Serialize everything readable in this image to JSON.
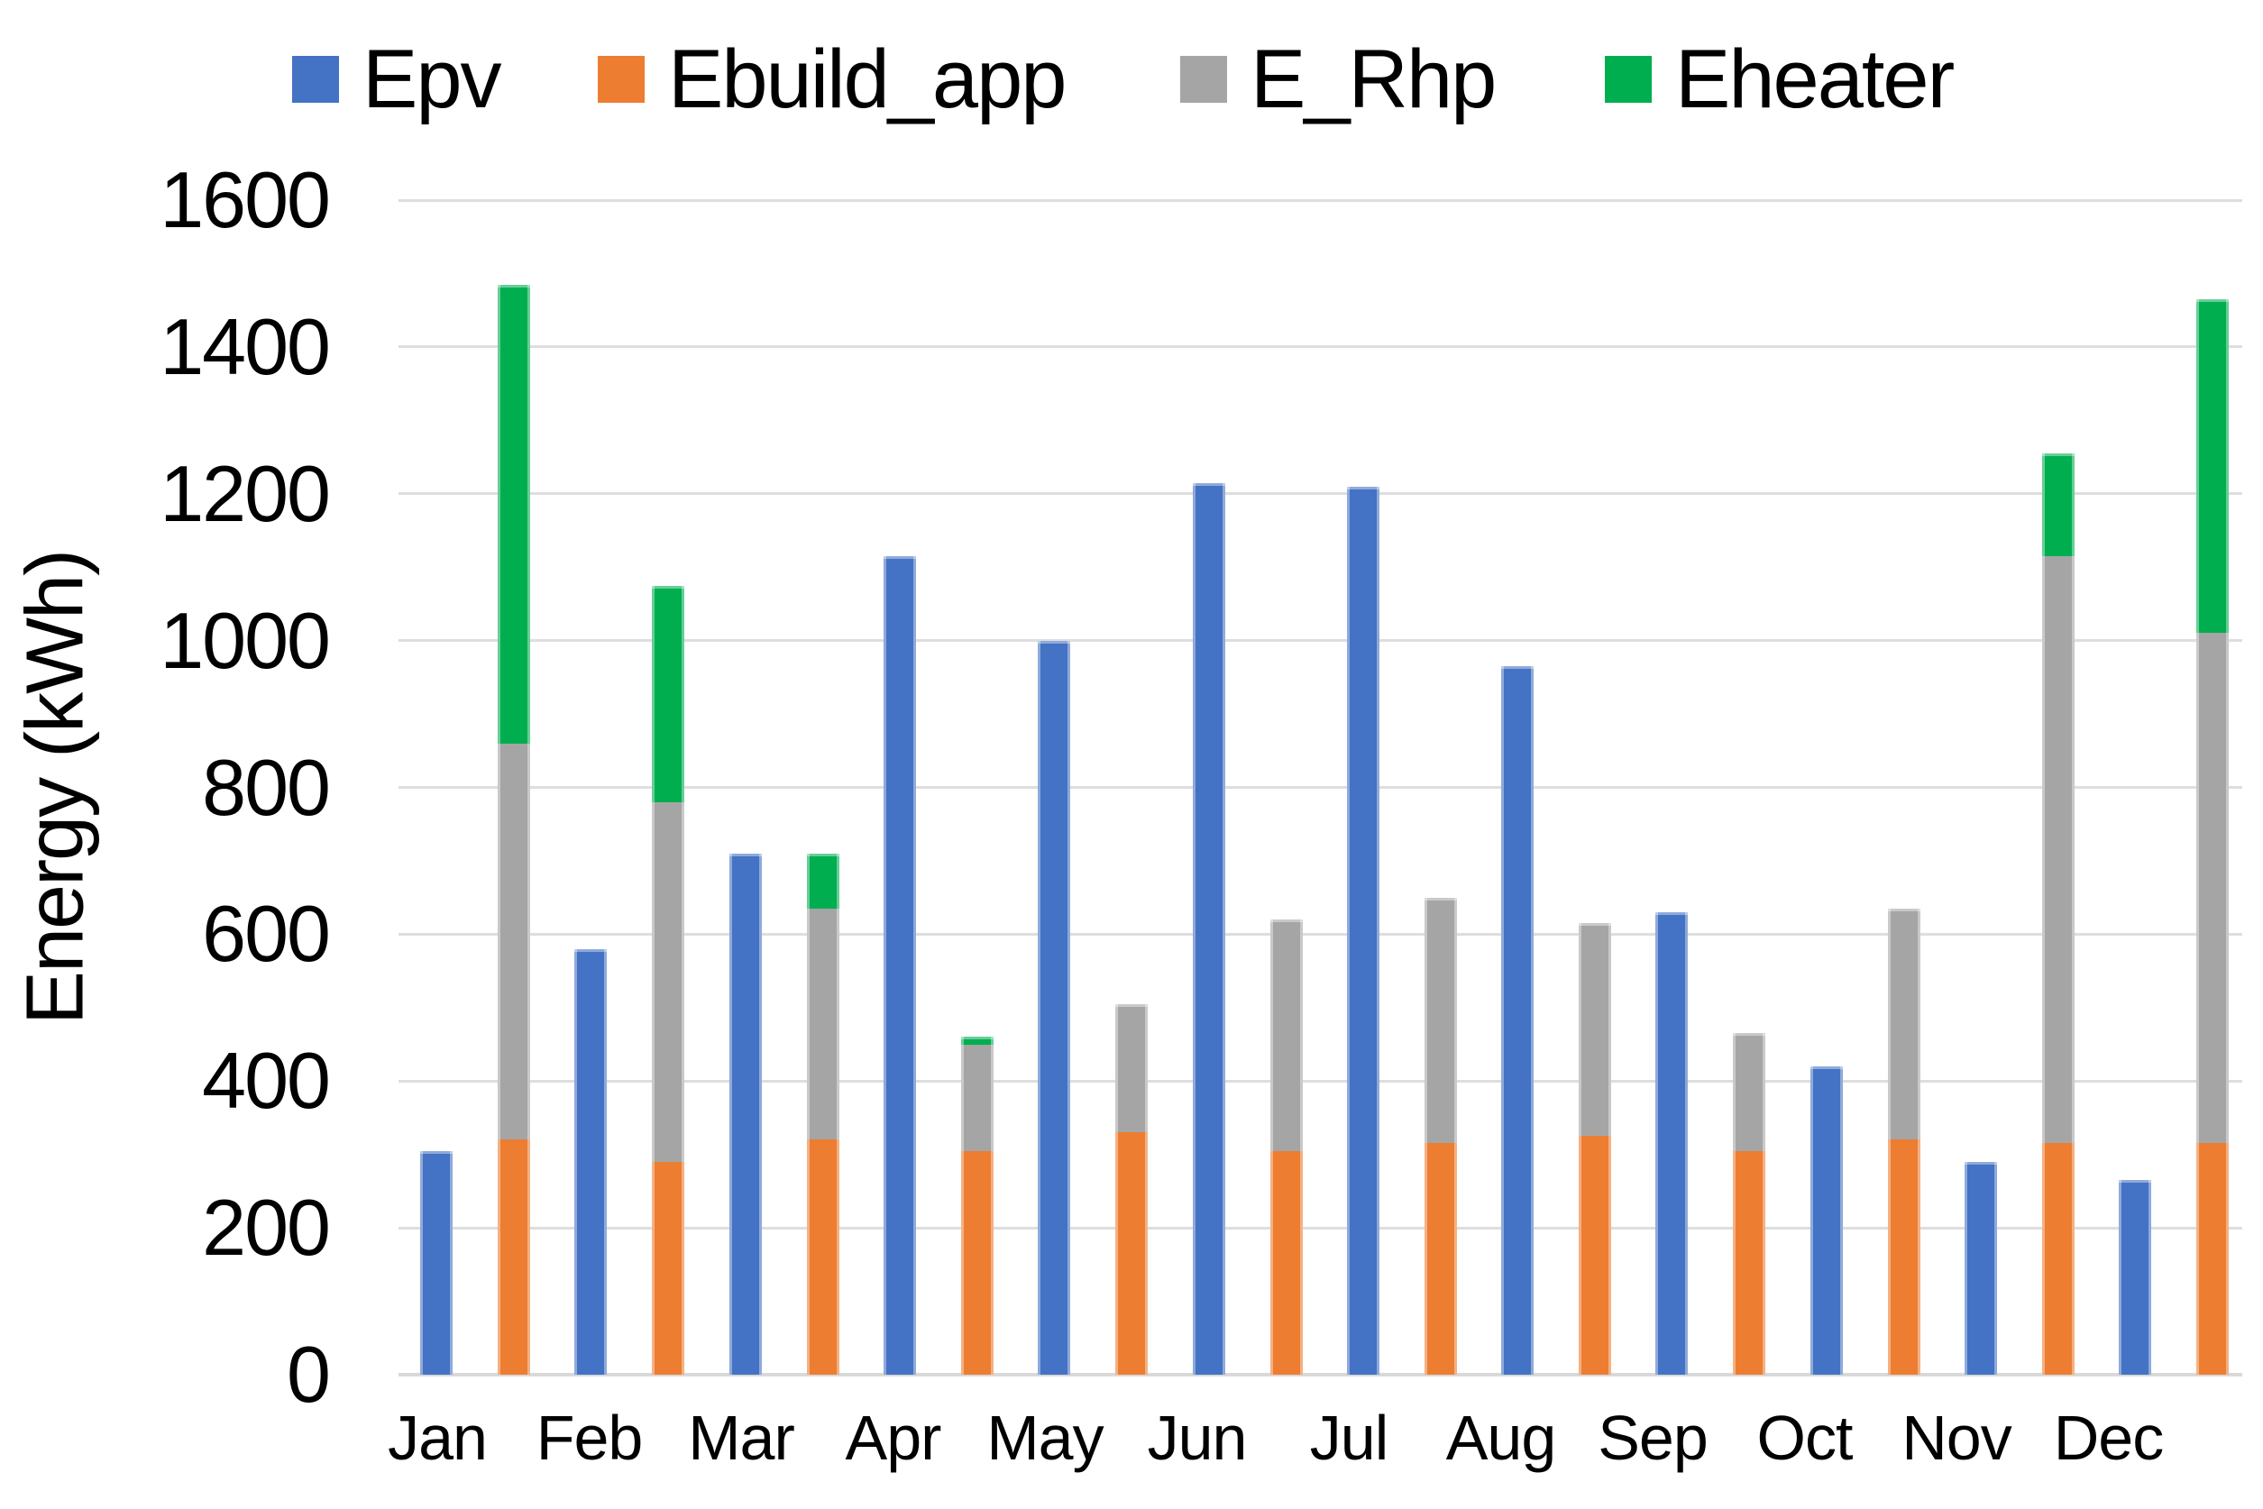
{
  "chart_data": {
    "type": "bar",
    "title": "",
    "xlabel": "",
    "ylabel": "Energy (kWh)",
    "ylim": [
      0,
      1600
    ],
    "y_ticks": [
      0,
      200,
      400,
      600,
      800,
      1000,
      1200,
      1400,
      1600
    ],
    "grid": true,
    "legend_position": "top",
    "categories": [
      "Jan",
      "Feb",
      "Mar",
      "Apr",
      "May",
      "Jun",
      "Jul",
      "Aug",
      "Sep",
      "Oct",
      "Nov",
      "Dec"
    ],
    "series": [
      {
        "name": "Epv",
        "color": "#4472C4",
        "stack": "pv",
        "values": [
          305,
          580,
          710,
          1115,
          1000,
          1215,
          1210,
          965,
          630,
          420,
          290,
          265
        ]
      },
      {
        "name": "Ebuild_app",
        "color": "#ED7D31",
        "stack": "load",
        "values": [
          320,
          290,
          320,
          305,
          330,
          305,
          315,
          325,
          305,
          320,
          315,
          315
        ]
      },
      {
        "name": "E_Rhp",
        "color": "#A5A5A5",
        "stack": "load",
        "values": [
          540,
          490,
          315,
          145,
          175,
          315,
          335,
          290,
          160,
          315,
          800,
          695
        ]
      },
      {
        "name": "Eheater",
        "color": "#00AE50",
        "stack": "load",
        "values": [
          625,
          295,
          75,
          10,
          0,
          0,
          0,
          0,
          0,
          0,
          140,
          455
        ]
      }
    ]
  }
}
